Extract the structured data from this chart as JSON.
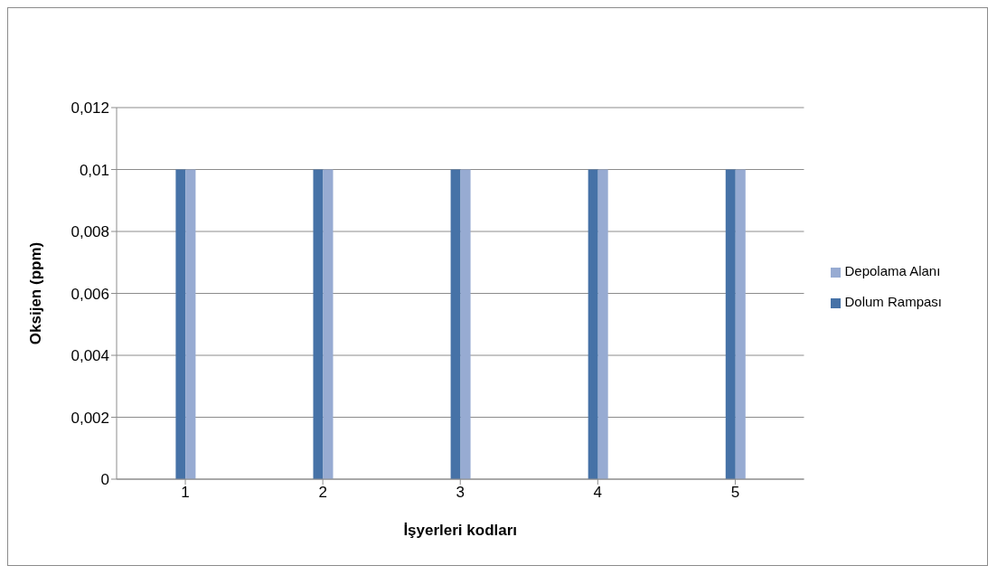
{
  "chart_data": {
    "type": "bar",
    "xlabel": "İşyerleri kodları",
    "ylabel": "Oksijen (ppm)",
    "categories": [
      "1",
      "2",
      "3",
      "4",
      "5"
    ],
    "series": [
      {
        "name": "Dolum Rampası",
        "color": "#4672a7",
        "values": [
          0.01,
          0.01,
          0.01,
          0.01,
          0.01
        ]
      },
      {
        "name": "Depolama Alanı",
        "color": "#97abd2",
        "values": [
          0.01,
          0.01,
          0.01,
          0.01,
          0.01
        ]
      }
    ],
    "ylim": [
      0,
      0.012
    ],
    "yticks": [
      {
        "value": 0,
        "label": "0"
      },
      {
        "value": 0.002,
        "label": "0,002"
      },
      {
        "value": 0.004,
        "label": "0,004"
      },
      {
        "value": 0.006,
        "label": "0,006"
      },
      {
        "value": 0.008,
        "label": "0,008"
      },
      {
        "value": 0.01,
        "label": "0,01"
      },
      {
        "value": 0.012,
        "label": "0,012"
      }
    ],
    "grid": "y",
    "legend": "right"
  }
}
